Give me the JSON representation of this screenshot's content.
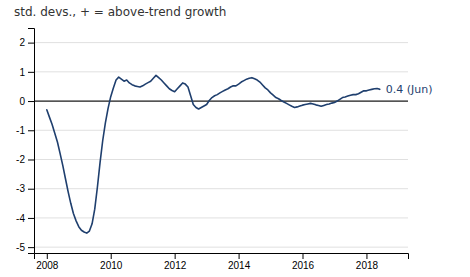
{
  "chart_data": {
    "type": "line",
    "title": "std. devs., + = above-trend growth",
    "annotation": "0.4 (Jun)",
    "color": "#1f3f6e",
    "grid": true,
    "xlim": [
      2007.6,
      2019.3
    ],
    "xticks": [
      2008,
      2010,
      2012,
      2014,
      2016,
      2018
    ],
    "ylim": [
      -5.2,
      2.5
    ],
    "yticks": [
      -5,
      -4,
      -3,
      -2,
      -1,
      0,
      1,
      2
    ],
    "x": [
      2008.0,
      2008.083,
      2008.167,
      2008.25,
      2008.333,
      2008.417,
      2008.5,
      2008.583,
      2008.667,
      2008.75,
      2008.833,
      2008.917,
      2009.0,
      2009.083,
      2009.167,
      2009.25,
      2009.333,
      2009.417,
      2009.5,
      2009.583,
      2009.667,
      2009.75,
      2009.833,
      2009.917,
      2010.0,
      2010.083,
      2010.167,
      2010.25,
      2010.333,
      2010.417,
      2010.5,
      2010.583,
      2010.667,
      2010.75,
      2010.833,
      2010.917,
      2011.0,
      2011.083,
      2011.167,
      2011.25,
      2011.333,
      2011.417,
      2011.5,
      2011.583,
      2011.667,
      2011.75,
      2011.833,
      2011.917,
      2012.0,
      2012.083,
      2012.167,
      2012.25,
      2012.333,
      2012.417,
      2012.5,
      2012.583,
      2012.667,
      2012.75,
      2012.833,
      2012.917,
      2013.0,
      2013.083,
      2013.167,
      2013.25,
      2013.333,
      2013.417,
      2013.5,
      2013.583,
      2013.667,
      2013.75,
      2013.833,
      2013.917,
      2014.0,
      2014.083,
      2014.167,
      2014.25,
      2014.333,
      2014.417,
      2014.5,
      2014.583,
      2014.667,
      2014.75,
      2014.833,
      2014.917,
      2015.0,
      2015.083,
      2015.167,
      2015.25,
      2015.333,
      2015.417,
      2015.5,
      2015.583,
      2015.667,
      2015.75,
      2015.833,
      2015.917,
      2016.0,
      2016.083,
      2016.167,
      2016.25,
      2016.333,
      2016.417,
      2016.5,
      2016.583,
      2016.667,
      2016.75,
      2016.833,
      2016.917,
      2017.0,
      2017.083,
      2017.167,
      2017.25,
      2017.333,
      2017.417,
      2017.5,
      2017.583,
      2017.667,
      2017.75,
      2017.833,
      2017.917,
      2018.0,
      2018.083,
      2018.167,
      2018.25,
      2018.333,
      2018.417
    ],
    "values": [
      -0.3,
      -0.55,
      -0.8,
      -1.1,
      -1.4,
      -1.8,
      -2.2,
      -2.65,
      -3.1,
      -3.5,
      -3.85,
      -4.1,
      -4.3,
      -4.42,
      -4.48,
      -4.52,
      -4.45,
      -4.2,
      -3.7,
      -2.95,
      -2.1,
      -1.35,
      -0.75,
      -0.25,
      0.15,
      0.45,
      0.72,
      0.82,
      0.75,
      0.68,
      0.72,
      0.62,
      0.56,
      0.52,
      0.5,
      0.48,
      0.52,
      0.58,
      0.63,
      0.68,
      0.78,
      0.88,
      0.8,
      0.72,
      0.62,
      0.52,
      0.42,
      0.36,
      0.32,
      0.42,
      0.52,
      0.62,
      0.58,
      0.48,
      0.18,
      -0.12,
      -0.22,
      -0.27,
      -0.22,
      -0.17,
      -0.12,
      0.02,
      0.12,
      0.18,
      0.22,
      0.28,
      0.33,
      0.38,
      0.42,
      0.48,
      0.52,
      0.52,
      0.58,
      0.65,
      0.7,
      0.75,
      0.78,
      0.8,
      0.76,
      0.72,
      0.65,
      0.55,
      0.45,
      0.38,
      0.28,
      0.2,
      0.12,
      0.08,
      0.02,
      -0.03,
      -0.08,
      -0.13,
      -0.18,
      -0.22,
      -0.2,
      -0.17,
      -0.14,
      -0.12,
      -0.1,
      -0.08,
      -0.1,
      -0.13,
      -0.15,
      -0.18,
      -0.15,
      -0.12,
      -0.1,
      -0.07,
      -0.05,
      0.0,
      0.06,
      0.12,
      0.14,
      0.17,
      0.2,
      0.22,
      0.22,
      0.25,
      0.3,
      0.35,
      0.35,
      0.38,
      0.4,
      0.42,
      0.43,
      0.4
    ]
  }
}
